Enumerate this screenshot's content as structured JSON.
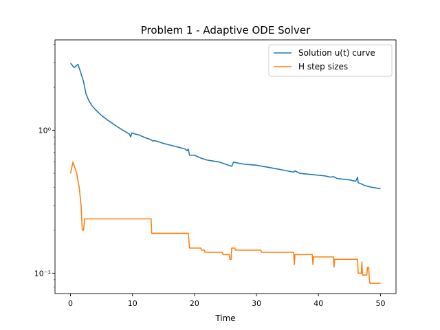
{
  "chart_data": {
    "type": "line",
    "title": "Problem 1 - Adaptive ODE Solver",
    "xlabel": "Time",
    "ylabel": "",
    "yscale": "log",
    "xlim": [
      -2.5,
      52.5
    ],
    "ylim": [
      0.072,
      4.3
    ],
    "grid": false,
    "legend_position": "upper right",
    "x_ticks": [
      0,
      10,
      20,
      30,
      40,
      50
    ],
    "x_tick_labels": [
      "0",
      "10",
      "20",
      "30",
      "40",
      "50"
    ],
    "y_ticks": [
      0.1,
      1
    ],
    "y_tick_labels": [
      "10⁻¹",
      "10⁰"
    ],
    "series": [
      {
        "name": "Solution u(t) curve",
        "color": "#1f77b4",
        "points": [
          [
            0,
            2.95
          ],
          [
            0.6,
            2.75
          ],
          [
            1.0,
            2.85
          ],
          [
            1.2,
            2.9
          ],
          [
            1.7,
            2.5
          ],
          [
            2.1,
            2.2
          ],
          [
            2.5,
            1.8
          ],
          [
            3.0,
            1.6
          ],
          [
            3.5,
            1.48
          ],
          [
            4.0,
            1.4
          ],
          [
            5.0,
            1.27
          ],
          [
            6.0,
            1.18
          ],
          [
            7.0,
            1.1
          ],
          [
            8.0,
            1.03
          ],
          [
            9.0,
            0.97
          ],
          [
            9.5,
            0.94
          ],
          [
            9.7,
            0.9
          ],
          [
            9.9,
            0.96
          ],
          [
            10.5,
            0.94
          ],
          [
            11.0,
            0.93
          ],
          [
            12.0,
            0.89
          ],
          [
            13.0,
            0.86
          ],
          [
            13.3,
            0.84
          ],
          [
            13.5,
            0.85
          ],
          [
            15.0,
            0.81
          ],
          [
            17.0,
            0.77
          ],
          [
            18.5,
            0.74
          ],
          [
            18.8,
            0.72
          ],
          [
            19.0,
            0.74
          ],
          [
            19.2,
            0.67
          ],
          [
            20.0,
            0.67
          ],
          [
            21.0,
            0.64
          ],
          [
            22.0,
            0.62
          ],
          [
            23.0,
            0.61
          ],
          [
            24.0,
            0.6
          ],
          [
            25.0,
            0.58
          ],
          [
            25.5,
            0.57
          ],
          [
            26.0,
            0.56
          ],
          [
            26.3,
            0.6
          ],
          [
            27.0,
            0.59
          ],
          [
            28.0,
            0.58
          ],
          [
            29.0,
            0.575
          ],
          [
            30.0,
            0.57
          ],
          [
            30.5,
            0.565
          ],
          [
            31.0,
            0.56
          ],
          [
            32.0,
            0.55
          ],
          [
            33.0,
            0.54
          ],
          [
            34.0,
            0.53
          ],
          [
            35.0,
            0.52
          ],
          [
            36.0,
            0.51
          ],
          [
            36.2,
            0.52
          ],
          [
            37.0,
            0.5
          ],
          [
            38.0,
            0.495
          ],
          [
            39.0,
            0.49
          ],
          [
            40.0,
            0.485
          ],
          [
            41.0,
            0.48
          ],
          [
            42.0,
            0.47
          ],
          [
            42.4,
            0.475
          ],
          [
            43.0,
            0.46
          ],
          [
            44.0,
            0.455
          ],
          [
            45.0,
            0.45
          ],
          [
            46.0,
            0.44
          ],
          [
            46.3,
            0.47
          ],
          [
            46.4,
            0.43
          ],
          [
            47.0,
            0.42
          ],
          [
            47.5,
            0.41
          ],
          [
            48.0,
            0.405
          ],
          [
            48.5,
            0.4
          ],
          [
            49.0,
            0.397
          ],
          [
            50.0,
            0.39
          ]
        ]
      },
      {
        "name": "H step sizes",
        "color": "#ff7f0e",
        "points": [
          [
            0,
            0.5
          ],
          [
            0.4,
            0.6
          ],
          [
            1.0,
            0.5
          ],
          [
            1.4,
            0.4
          ],
          [
            1.7,
            0.3
          ],
          [
            1.9,
            0.2
          ],
          [
            2.1,
            0.2
          ],
          [
            2.3,
            0.24
          ],
          [
            13.0,
            0.24
          ],
          [
            13.1,
            0.19
          ],
          [
            19.0,
            0.19
          ],
          [
            19.2,
            0.15
          ],
          [
            21.0,
            0.15
          ],
          [
            21.1,
            0.145
          ],
          [
            21.6,
            0.145
          ],
          [
            21.7,
            0.14
          ],
          [
            24.5,
            0.14
          ],
          [
            24.6,
            0.135
          ],
          [
            25.6,
            0.135
          ],
          [
            25.7,
            0.125
          ],
          [
            25.9,
            0.125
          ],
          [
            26.0,
            0.15
          ],
          [
            26.5,
            0.15
          ],
          [
            26.6,
            0.145
          ],
          [
            30.7,
            0.145
          ],
          [
            30.8,
            0.14
          ],
          [
            36.0,
            0.14
          ],
          [
            36.1,
            0.115
          ],
          [
            36.2,
            0.135
          ],
          [
            39.0,
            0.135
          ],
          [
            39.1,
            0.115
          ],
          [
            39.2,
            0.13
          ],
          [
            42.4,
            0.13
          ],
          [
            42.5,
            0.11
          ],
          [
            42.6,
            0.125
          ],
          [
            46.3,
            0.125
          ],
          [
            46.4,
            0.1
          ],
          [
            46.9,
            0.1
          ],
          [
            47.0,
            0.12
          ],
          [
            47.1,
            0.097
          ],
          [
            47.8,
            0.097
          ],
          [
            47.9,
            0.11
          ],
          [
            48.1,
            0.11
          ],
          [
            48.2,
            0.09
          ],
          [
            48.3,
            0.085
          ],
          [
            50.0,
            0.085
          ]
        ]
      }
    ]
  }
}
